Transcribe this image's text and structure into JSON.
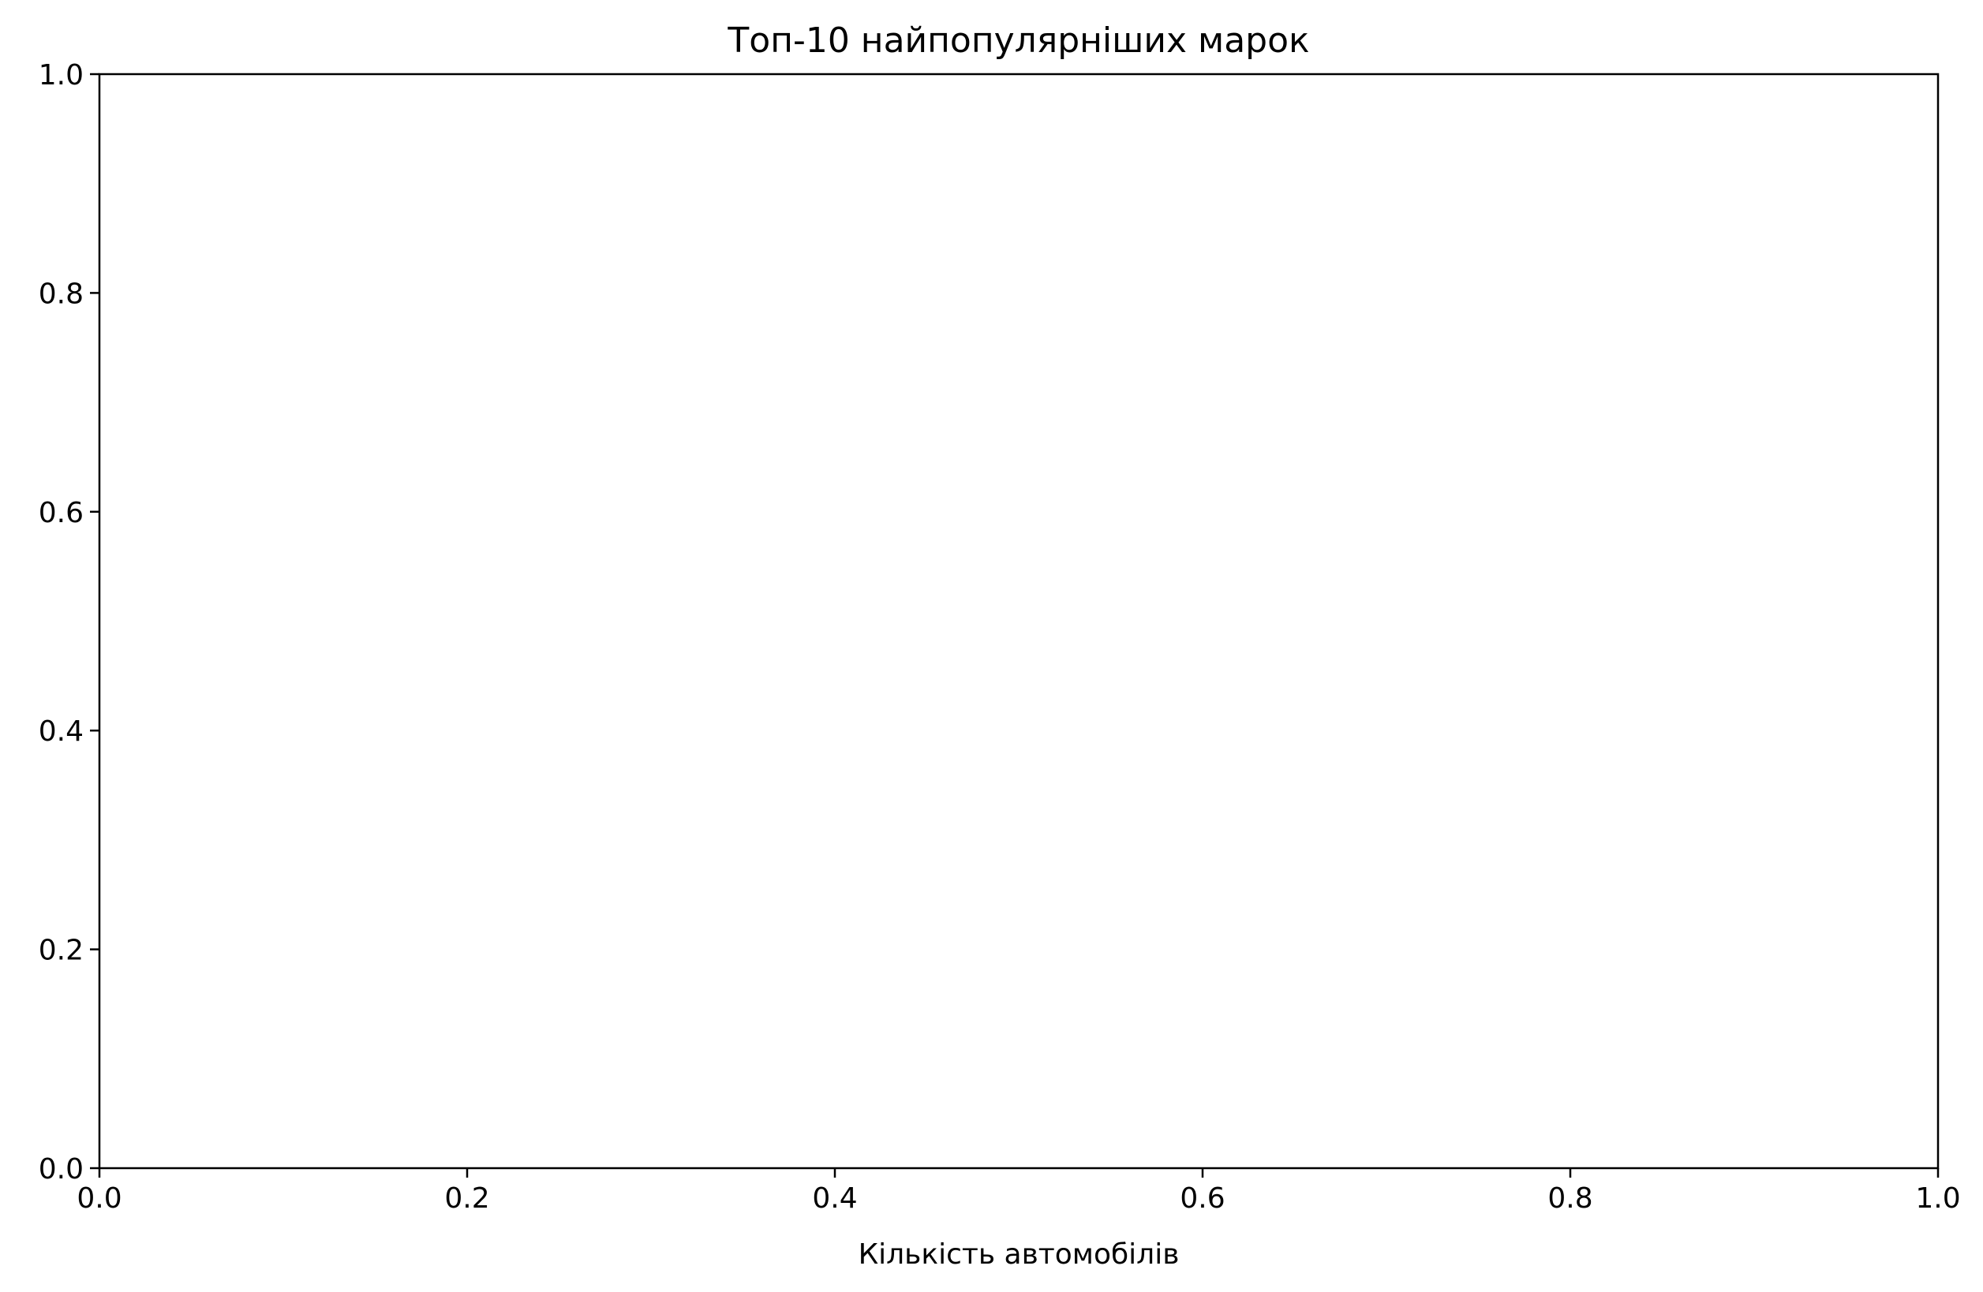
{
  "chart_data": {
    "type": "bar",
    "orientation": "horizontal",
    "title": "Топ-10 найпопулярніших марок",
    "xlabel": "Кількість автомобілів",
    "ylabel": "",
    "categories": [],
    "values": [],
    "xlim": [
      0,
      1
    ],
    "ylim": [
      0,
      1
    ],
    "xticks": [
      "0.0",
      "0.2",
      "0.4",
      "0.6",
      "0.8",
      "1.0"
    ],
    "yticks": [
      "0.0",
      "0.2",
      "0.4",
      "0.6",
      "0.8",
      "1.0"
    ],
    "grid": false,
    "legend": "none",
    "colors": {
      "axes": "#000000",
      "background": "#ffffff"
    }
  }
}
